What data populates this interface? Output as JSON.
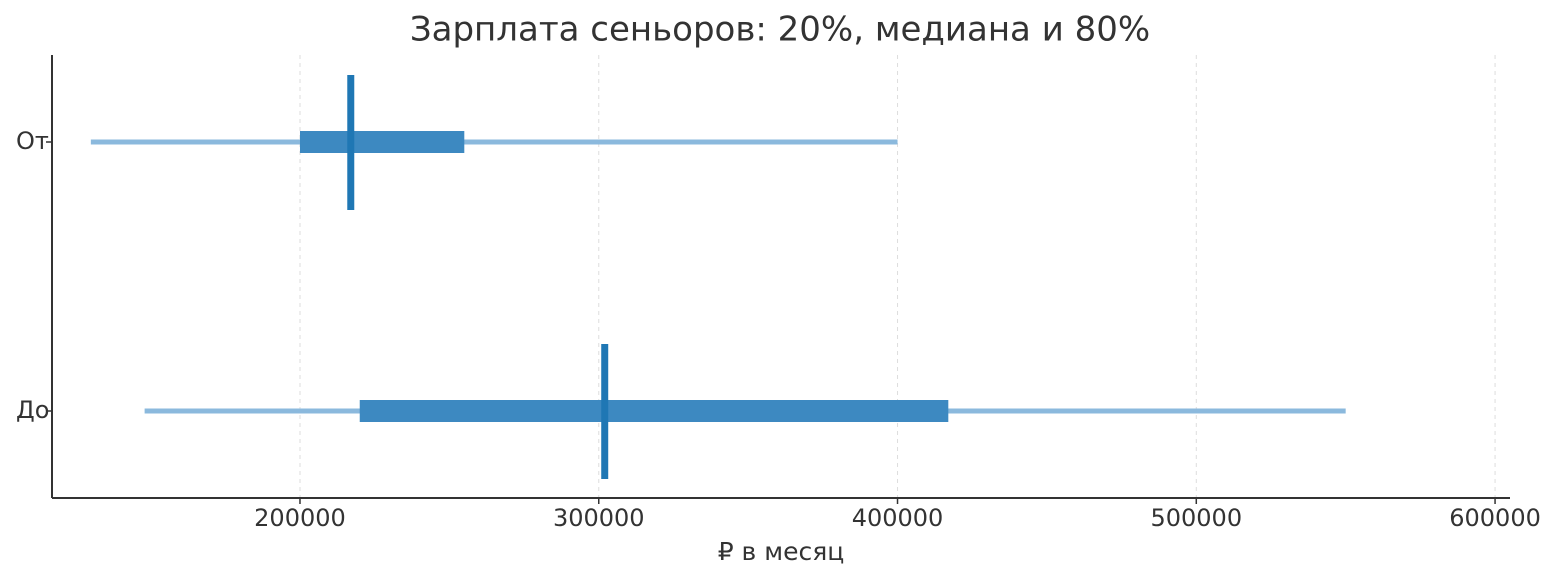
{
  "chart_data": {
    "type": "range",
    "title": "Зарплата сеньоров: 20%, медиана и 80%",
    "x_label": "₽ в месяц",
    "categories": [
      "От",
      "До"
    ],
    "min": [
      130000,
      148000
    ],
    "p20": [
      200000,
      220000
    ],
    "median": [
      217000,
      302000
    ],
    "p80": [
      255000,
      417000
    ],
    "max": [
      400000,
      550000
    ],
    "colors": {
      "range": "#8bb9dd",
      "box": "#3d89c1",
      "median": "#1f77b4"
    },
    "xlim": [
      117000,
      605000
    ],
    "xticks": [
      200000,
      300000,
      400000,
      500000,
      600000
    ],
    "grid": true
  }
}
